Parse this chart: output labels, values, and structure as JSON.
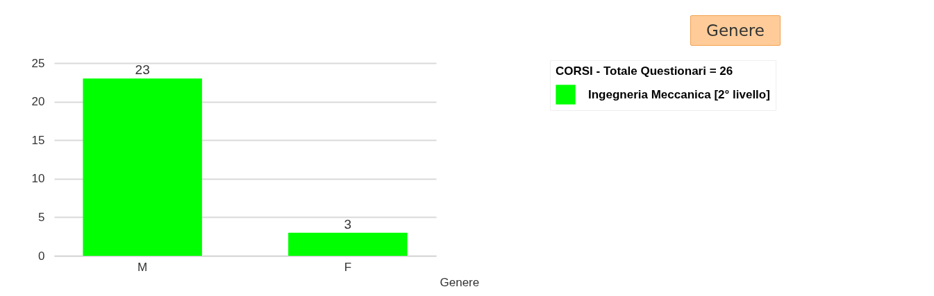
{
  "chart_data": {
    "type": "bar",
    "title": "Genere",
    "xlabel": "Genere",
    "legend_title": "CORSI - Totale Questionari = 26",
    "categories": [
      "M",
      "F"
    ],
    "series": [
      {
        "name": "Ingegneria Meccanica [2° livello]",
        "color": "#00ff00",
        "values": [
          23,
          3
        ]
      }
    ],
    "ylim": [
      0,
      25
    ],
    "yticks": [
      0,
      5,
      10,
      15,
      20,
      25
    ],
    "grid": "y",
    "legend": "top right",
    "data_labels": true
  }
}
